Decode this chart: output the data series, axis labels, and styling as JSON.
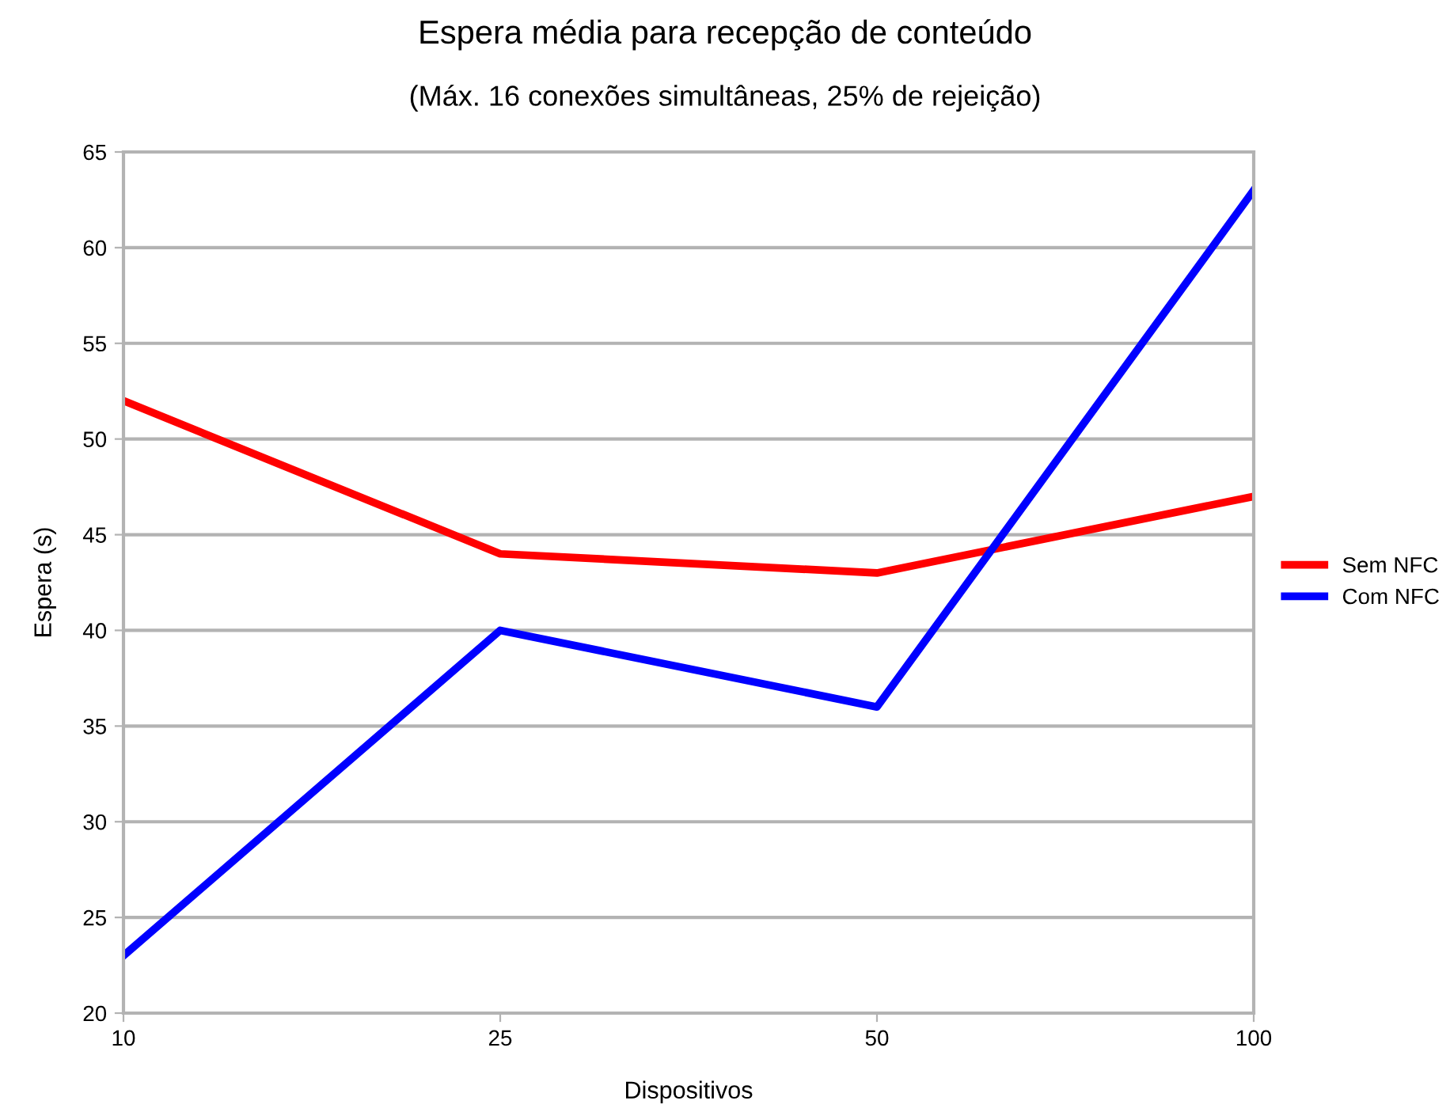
{
  "chart_data": {
    "type": "line",
    "title": "Espera média para recepção de conteúdo",
    "subtitle": "(Máx. 16 conexões simultâneas, 25% de rejeição)",
    "xlabel": "Dispositivos",
    "ylabel": "Espera (s)",
    "categories": [
      "10",
      "25",
      "50",
      "100"
    ],
    "series": [
      {
        "name": "Sem NFC",
        "color": "#ff0000",
        "values": [
          52,
          44,
          43,
          47
        ]
      },
      {
        "name": "Com NFC",
        "color": "#0000ff",
        "values": [
          23,
          40,
          36,
          63
        ]
      }
    ],
    "ylim": [
      20,
      65
    ],
    "yticks": [
      20,
      25,
      30,
      35,
      40,
      45,
      50,
      55,
      60,
      65
    ],
    "grid": "y",
    "legend": "right",
    "marker": "none",
    "line_style": "solid"
  }
}
